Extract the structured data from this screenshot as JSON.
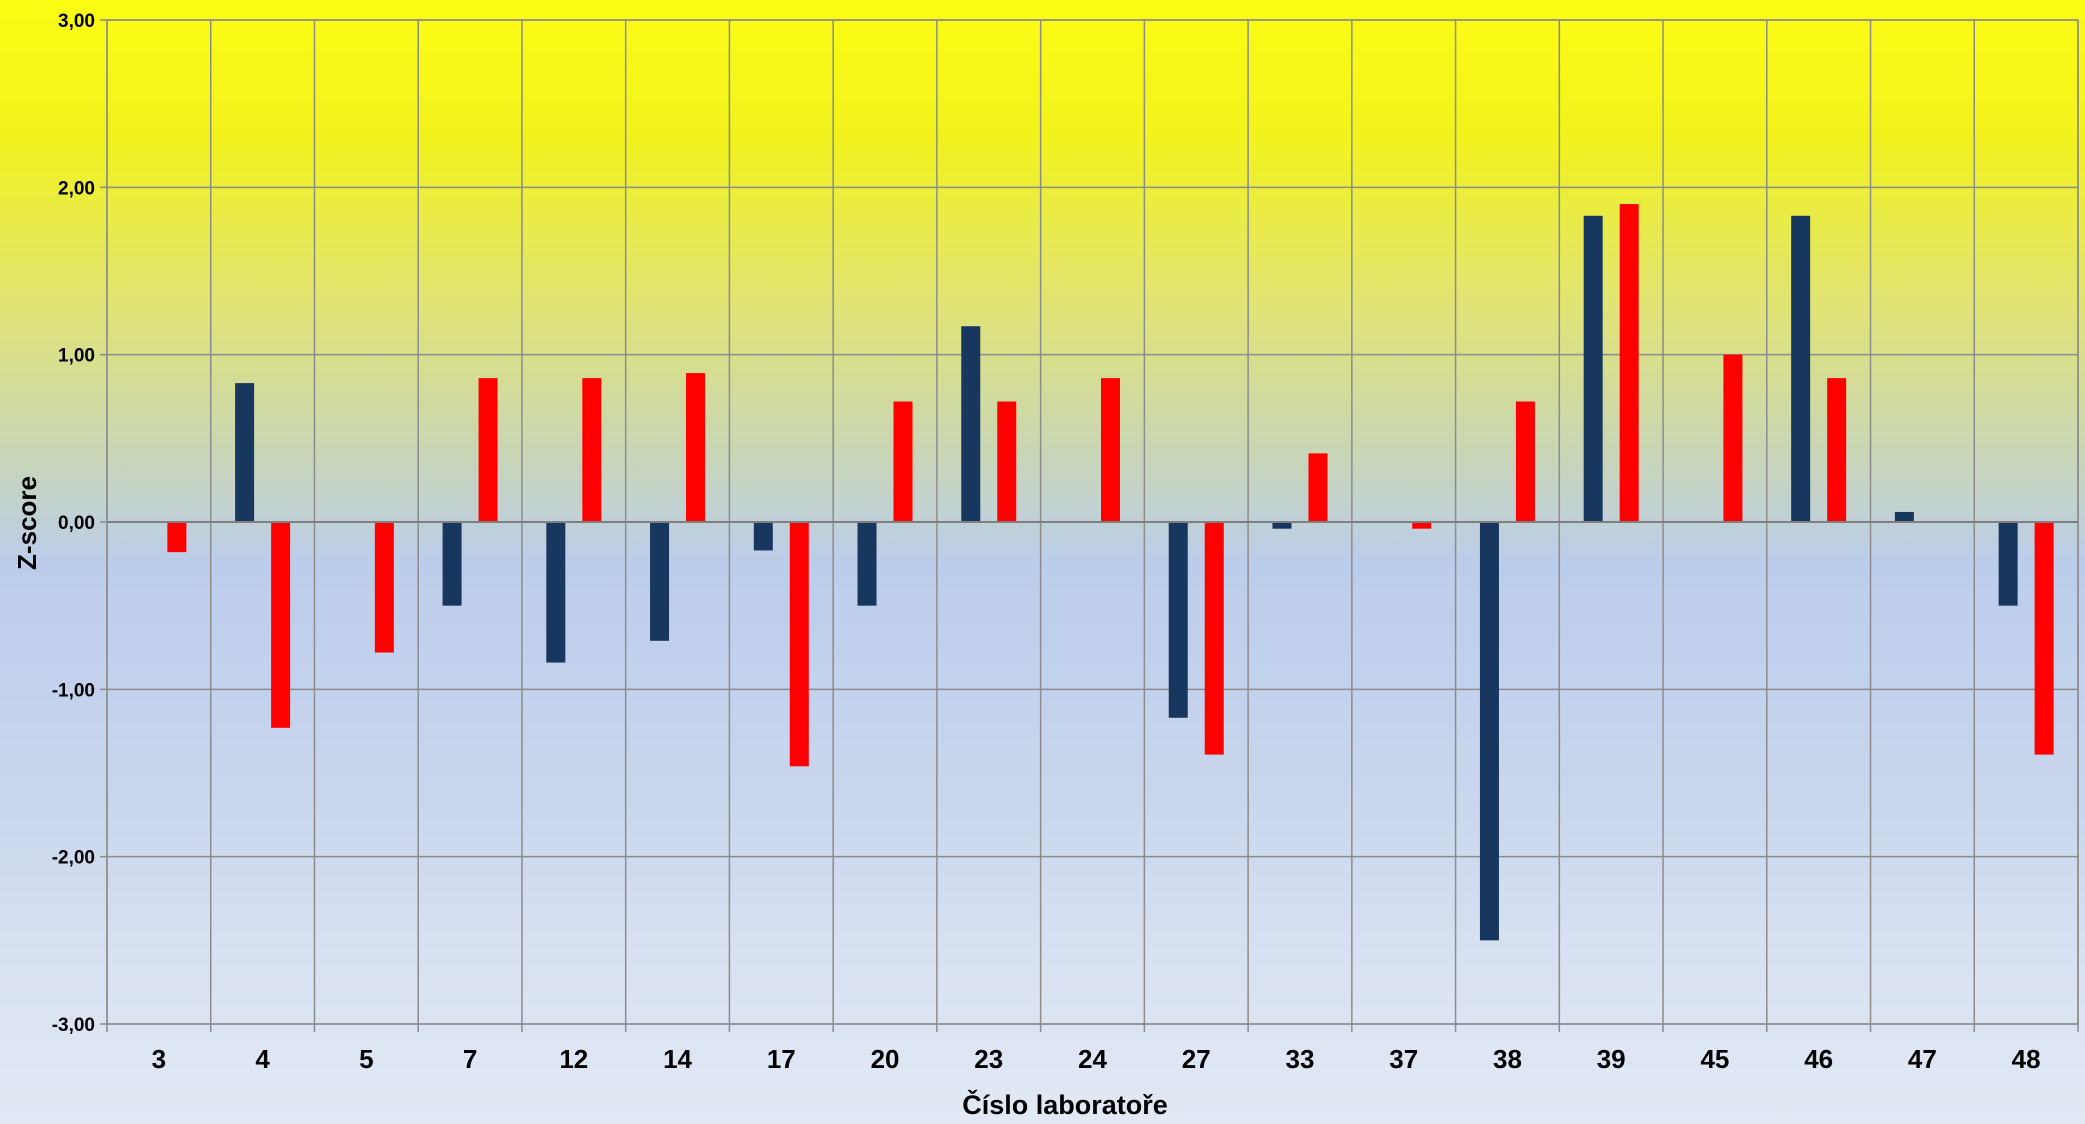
{
  "chart_data": {
    "type": "bar",
    "xlabel": "Číslo laboratoře",
    "ylabel": "Z-score",
    "ylim": [
      -3,
      3
    ],
    "yticks": [
      {
        "value": 3,
        "label": "3,00"
      },
      {
        "value": 2,
        "label": "2,00"
      },
      {
        "value": 1,
        "label": "1,00"
      },
      {
        "value": 0,
        "label": "0,00"
      },
      {
        "value": -1,
        "label": "-1,00"
      },
      {
        "value": -2,
        "label": "-2,00"
      },
      {
        "value": -3,
        "label": "-3,00"
      }
    ],
    "grid": true,
    "legend": "none",
    "categories": [
      "3",
      "4",
      "5",
      "7",
      "12",
      "14",
      "17",
      "20",
      "23",
      "24",
      "27",
      "33",
      "37",
      "38",
      "39",
      "45",
      "46",
      "47",
      "48"
    ],
    "series": [
      {
        "color": "#17375e",
        "values": [
          null,
          0.83,
          null,
          -0.5,
          -0.84,
          -0.71,
          -0.17,
          -0.5,
          1.17,
          null,
          -1.17,
          -0.04,
          null,
          -2.5,
          1.83,
          null,
          1.83,
          0.06,
          -0.5
        ]
      },
      {
        "color": "#ff0000",
        "values": [
          -0.18,
          -1.23,
          -0.78,
          0.86,
          0.86,
          0.89,
          -1.46,
          0.72,
          0.72,
          0.86,
          -1.39,
          0.41,
          -0.04,
          0.72,
          1.9,
          1.0,
          0.86,
          null,
          -1.39
        ]
      }
    ]
  }
}
